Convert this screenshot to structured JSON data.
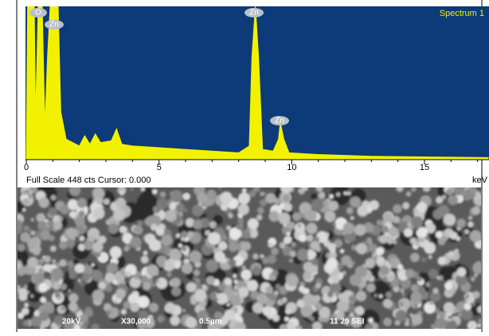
{
  "chart_data": {
    "type": "area",
    "title": "Spectrum 1",
    "annotation": "Full Scale 448 cts Cursor: 0.000",
    "x_label": "keV",
    "x": [
      0,
      0.05,
      0.3,
      0.35,
      0.45,
      0.6,
      0.7,
      0.8,
      0.9,
      1.2,
      1.3,
      1.5,
      2.0,
      2.2,
      2.4,
      2.6,
      2.8,
      3.2,
      3.4,
      3.6,
      4,
      5,
      6,
      7,
      8,
      8.4,
      8.5,
      8.63,
      8.75,
      8.9,
      9.3,
      9.5,
      9.57,
      9.7,
      9.9,
      11,
      13,
      15,
      17.4
    ],
    "values": [
      0,
      448,
      448,
      120,
      448,
      448,
      100,
      300,
      448,
      448,
      140,
      60,
      40,
      70,
      45,
      75,
      50,
      55,
      90,
      45,
      40,
      35,
      30,
      25,
      20,
      40,
      300,
      448,
      300,
      30,
      25,
      60,
      110,
      60,
      20,
      15,
      10,
      8,
      6
    ],
    "color": "#f2f200",
    "background": "#0d3a78",
    "xlim": [
      0,
      17.4
    ],
    "xticks": [
      0,
      5,
      10,
      15
    ],
    "ylim": [
      0,
      448
    ],
    "peak_labels": [
      "O",
      "Zn",
      "Zn",
      "Zn"
    ]
  },
  "sem_image": {
    "labels": [
      "20kV",
      "X30,000",
      "0.5µm",
      "11 29 SEI"
    ]
  }
}
